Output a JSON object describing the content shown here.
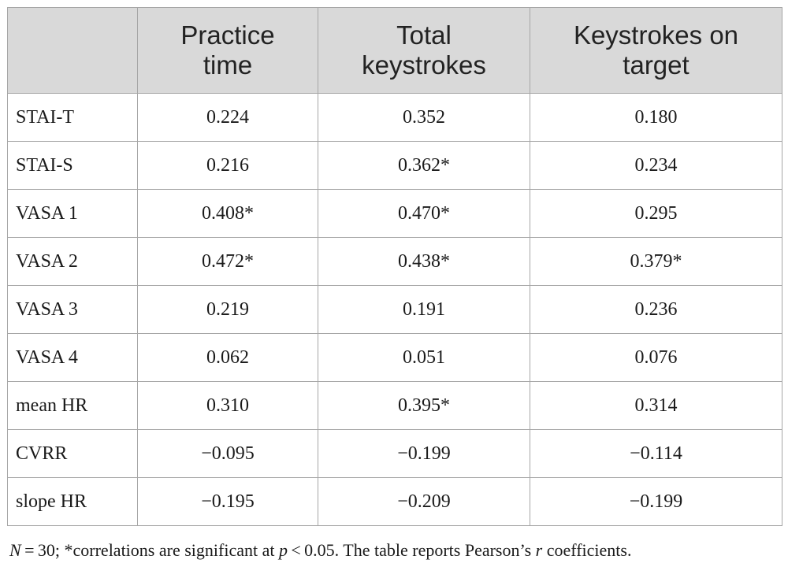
{
  "table": {
    "columns": [
      {
        "line1": "",
        "line2": ""
      },
      {
        "line1": "Practice",
        "line2": "time"
      },
      {
        "line1": "Total",
        "line2": "keystrokes"
      },
      {
        "line1": "Keystrokes on",
        "line2": "target"
      }
    ],
    "rows": [
      {
        "label": "STAI-T",
        "values": [
          "0.224",
          "0.352",
          "0.180"
        ]
      },
      {
        "label": "STAI-S",
        "values": [
          "0.216",
          "0.362*",
          "0.234"
        ]
      },
      {
        "label": "VASA 1",
        "values": [
          "0.408*",
          "0.470*",
          "0.295"
        ]
      },
      {
        "label": "VASA 2",
        "values": [
          "0.472*",
          "0.438*",
          "0.379*"
        ]
      },
      {
        "label": "VASA 3",
        "values": [
          "0.219",
          "0.191",
          "0.236"
        ]
      },
      {
        "label": "VASA 4",
        "values": [
          "0.062",
          "0.051",
          "0.076"
        ]
      },
      {
        "label": "mean HR",
        "values": [
          "0.310",
          "0.395*",
          "0.314"
        ]
      },
      {
        "label": "CVRR",
        "values": [
          "−0.095",
          "−0.199",
          "−0.114"
        ]
      },
      {
        "label": "slope HR",
        "values": [
          "−0.195",
          "−0.209",
          "−0.199"
        ]
      }
    ]
  },
  "footnote": {
    "n_symbol": "N",
    "n_text": " = 30; *correlations are significant at ",
    "p_symbol": "p",
    "p_text": " < 0.05. The table reports Pearson’s ",
    "r_symbol": "r",
    "end_text": " coefficients."
  }
}
